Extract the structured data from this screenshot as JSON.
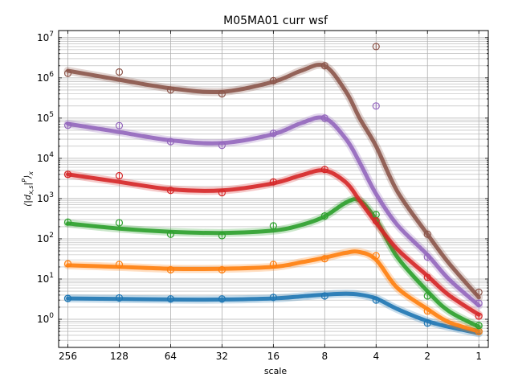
{
  "chart_data": {
    "type": "line",
    "title": "M05MA01 curr wsf",
    "xlabel": "scale",
    "ylabel": "⟨|d_{x,s}|^P⟩_x",
    "x_scale": "log2",
    "x_reversed": true,
    "y_scale": "log10",
    "xlim": [
      290,
      0.88
    ],
    "ylim": [
      0.2,
      15000000
    ],
    "grid": true,
    "x_ticks": [
      256,
      128,
      64,
      32,
      16,
      8,
      4,
      2,
      1
    ],
    "x_tick_labels": [
      "256",
      "128",
      "64",
      "32",
      "16",
      "8",
      "4",
      "2",
      "1"
    ],
    "y_ticks": [
      1,
      10,
      100,
      1000,
      10000,
      100000,
      1000000,
      10000000
    ],
    "y_tick_labels": [
      {
        "base": "10",
        "exp": "0"
      },
      {
        "base": "10",
        "exp": "1"
      },
      {
        "base": "10",
        "exp": "2"
      },
      {
        "base": "10",
        "exp": "3"
      },
      {
        "base": "10",
        "exp": "4"
      },
      {
        "base": "10",
        "exp": "5"
      },
      {
        "base": "10",
        "exp": "6"
      },
      {
        "base": "10",
        "exp": "7"
      }
    ],
    "series": [
      {
        "color": "#1f77b4",
        "points": {
          "x": [
            256,
            128,
            64,
            32,
            16,
            8,
            4,
            2,
            1
          ],
          "y": [
            3.3,
            3.4,
            3.2,
            3.2,
            3.5,
            3.8,
            3.0,
            0.8,
            0.5
          ]
        },
        "fit": {
          "x": [
            256,
            128,
            64,
            32,
            16,
            11,
            8,
            6,
            5,
            4,
            3,
            2,
            1.5,
            1
          ],
          "y": [
            3.3,
            3.2,
            3.1,
            3.1,
            3.3,
            3.7,
            4.1,
            4.3,
            4.1,
            3.3,
            1.8,
            0.9,
            0.65,
            0.45
          ]
        }
      },
      {
        "color": "#ff7f0e",
        "points": {
          "x": [
            256,
            128,
            64,
            32,
            16,
            8,
            4,
            2,
            1
          ],
          "y": [
            24,
            23,
            17,
            17,
            23,
            32,
            38,
            1.6,
            0.5
          ]
        },
        "fit": {
          "x": [
            256,
            128,
            64,
            32,
            16,
            11,
            8,
            6,
            5,
            4,
            3,
            2,
            1.5,
            1
          ],
          "y": [
            22,
            20,
            18,
            18,
            20,
            26,
            34,
            45,
            47,
            30,
            6,
            1.8,
            0.85,
            0.5
          ]
        }
      },
      {
        "color": "#2ca02c",
        "points": {
          "x": [
            256,
            128,
            64,
            32,
            16,
            8,
            4,
            2,
            1
          ],
          "y": [
            260,
            250,
            130,
            120,
            210,
            370,
            400,
            3.8,
            0.7
          ]
        },
        "fit": {
          "x": [
            256,
            128,
            64,
            32,
            16,
            11,
            8,
            6,
            5,
            4,
            3,
            2,
            1.5,
            1
          ],
          "y": [
            240,
            180,
            150,
            140,
            160,
            220,
            360,
            800,
            900,
            300,
            35,
            5,
            1.6,
            0.65
          ]
        }
      },
      {
        "color": "#d62728",
        "points": {
          "x": [
            256,
            128,
            64,
            32,
            16,
            8,
            4,
            2,
            1
          ],
          "y": [
            4000,
            3700,
            1600,
            1400,
            2600,
            5300,
            280,
            11,
            1.2
          ]
        },
        "fit": {
          "x": [
            256,
            128,
            64,
            32,
            16,
            11,
            8,
            6,
            5,
            4,
            3,
            2,
            1.5,
            1
          ],
          "y": [
            4000,
            2600,
            1700,
            1600,
            2400,
            3800,
            5000,
            2500,
            900,
            250,
            55,
            12,
            4,
            1.3
          ]
        }
      },
      {
        "color": "#9467bd",
        "points": {
          "x": [
            256,
            128,
            64,
            32,
            16,
            8,
            4,
            2,
            1
          ],
          "y": [
            66000,
            65000,
            26000,
            21000,
            42000,
            100000,
            200000,
            35,
            2.5
          ]
        },
        "fit": {
          "x": [
            256,
            128,
            64,
            32,
            16,
            11,
            8,
            6,
            5,
            4,
            3,
            2,
            1.5,
            1
          ],
          "y": [
            72000,
            45000,
            28000,
            24000,
            40000,
            75000,
            100000,
            30000,
            8000,
            1300,
            220,
            40,
            10,
            2.2
          ]
        }
      },
      {
        "color": "#8c564b",
        "points": {
          "x": [
            256,
            128,
            64,
            32,
            16,
            8,
            4,
            2,
            1
          ],
          "y": [
            1300000,
            1400000,
            500000,
            400000,
            850000,
            2000000,
            6000000,
            130,
            4.7
          ]
        },
        "fit": {
          "x": [
            256,
            128,
            64,
            32,
            16,
            11,
            8,
            6,
            5,
            4,
            3,
            2,
            1.5,
            1
          ],
          "y": [
            1500000,
            900000,
            550000,
            450000,
            800000,
            1500000,
            2000000,
            450000,
            100000,
            20000,
            1500,
            130,
            25,
            3.5
          ]
        }
      }
    ]
  }
}
